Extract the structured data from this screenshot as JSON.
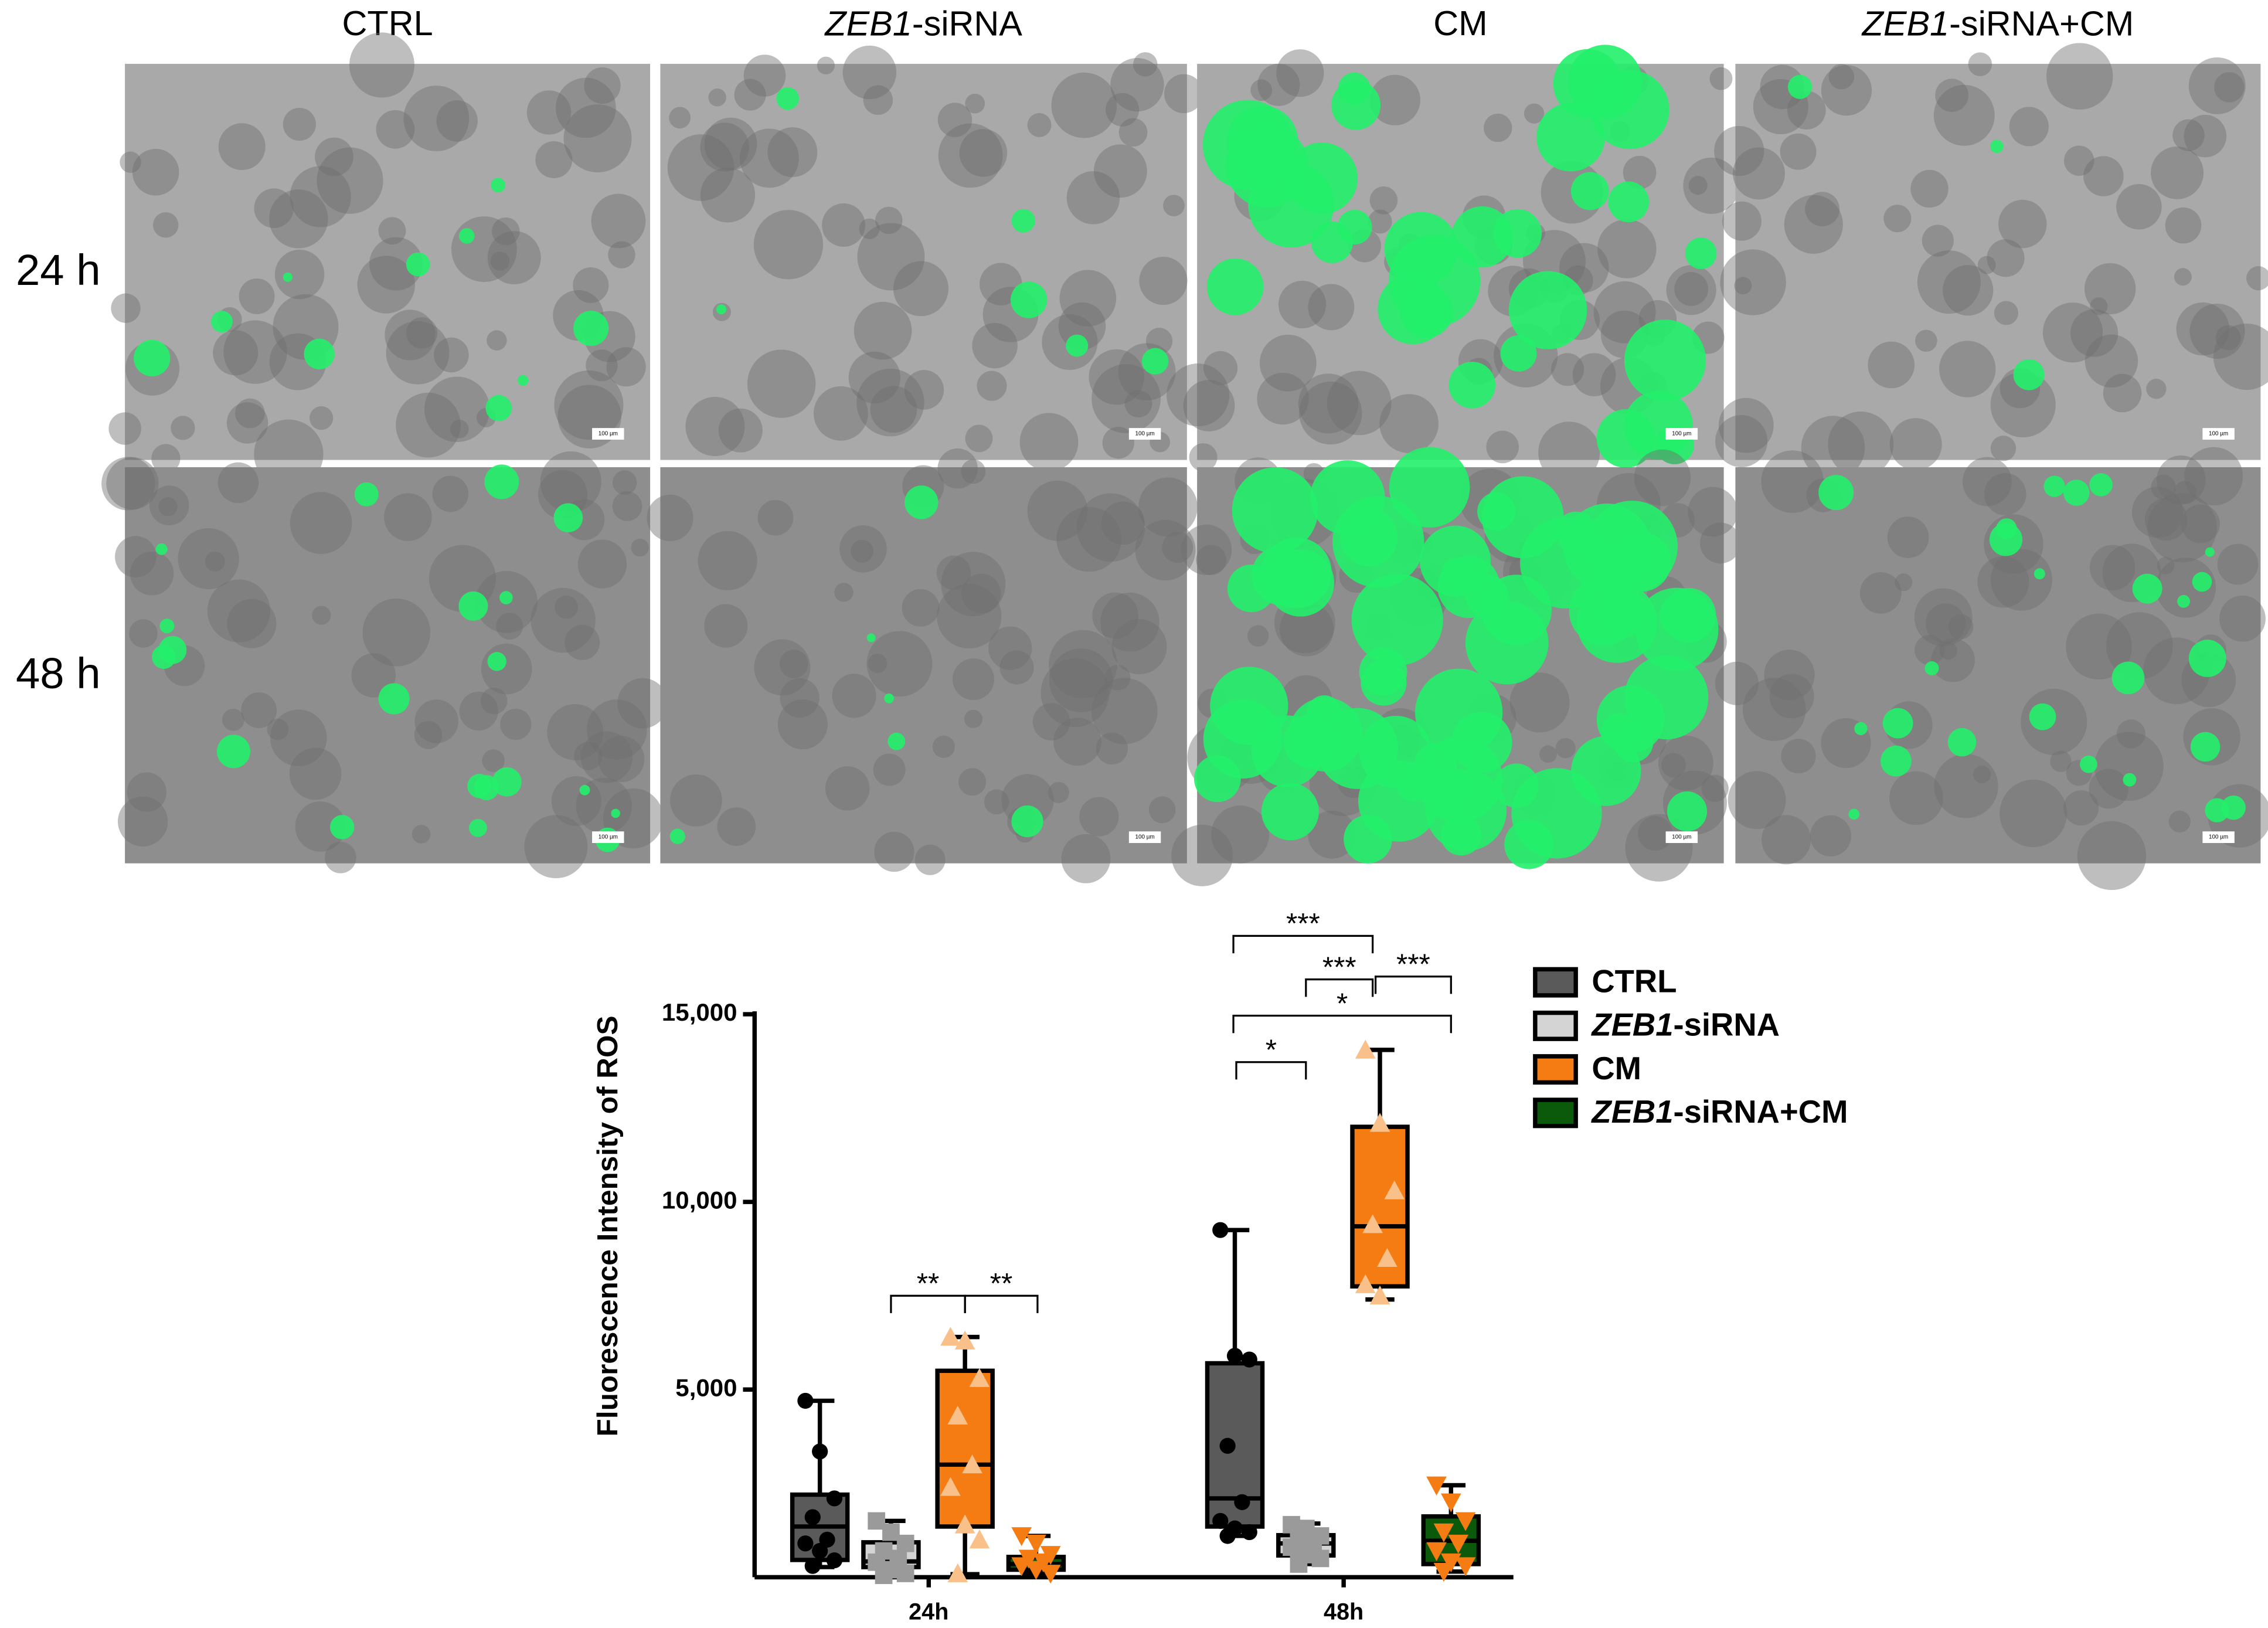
{
  "figure": {
    "column_titles": [
      "CTRL",
      "ZEB1-siRNA",
      "CM",
      "ZEB1-siRNA+CM"
    ],
    "row_labels": [
      "24 h",
      "48 h"
    ],
    "scale_bar_label": "100 µm"
  },
  "chart_data": {
    "type": "box",
    "ylabel": "Fluorescence Intensity of ROS",
    "categories": [
      "24h",
      "48h"
    ],
    "ylim": [
      0,
      15000
    ],
    "yticks": [
      {
        "value": 5000,
        "label": "5,000"
      },
      {
        "value": 10000,
        "label": "10,000"
      },
      {
        "value": 15000,
        "label": "15,000"
      }
    ],
    "legend": "upper right",
    "series": [
      {
        "name": "CTRL",
        "color": "#5a5a5a",
        "point_color": "#000000",
        "marker": "circle",
        "boxes": [
          {
            "min": 270,
            "q1": 460,
            "median": 1350,
            "q3": 2200,
            "max": 4700,
            "points": [
              4700,
              3350,
              2100,
              1600,
              1000,
              900,
              700,
              450,
              300
            ]
          },
          {
            "min": 1100,
            "q1": 1350,
            "median": 2100,
            "q3": 5700,
            "max": 9250,
            "points": [
              9250,
              5900,
              5800,
              3500,
              2000,
              1500,
              1300,
              1200,
              1100
            ]
          }
        ]
      },
      {
        "name": "ZEB1-siRNA",
        "color": "#d4d4d4",
        "point_color": "#9a9a9a",
        "marker": "square",
        "boxes": [
          {
            "min": 50,
            "q1": 270,
            "median": 420,
            "q3": 930,
            "max": 1500,
            "points": [
              1500,
              1200,
              900,
              700,
              500,
              400,
              200,
              100,
              50
            ]
          },
          {
            "min": 350,
            "q1": 580,
            "median": 900,
            "q3": 1120,
            "max": 1430,
            "points": [
              1400,
              1300,
              1100,
              1000,
              900,
              800,
              600,
              500,
              350
            ]
          }
        ]
      },
      {
        "name": "CM",
        "color": "#f47c12",
        "point_color": "#f9c08a",
        "marker": "triangle",
        "boxes": [
          {
            "min": 80,
            "q1": 1350,
            "median": 3000,
            "q3": 5500,
            "max": 6400,
            "points": [
              6400,
              6300,
              5300,
              4300,
              3000,
              2400,
              1400,
              1000,
              100
            ]
          },
          {
            "min": 7400,
            "q1": 7750,
            "median": 9350,
            "q3": 12000,
            "max": 14050,
            "points": [
              14050,
              12100,
              10300,
              9400,
              8500,
              7800,
              7500
            ]
          }
        ]
      },
      {
        "name": "ZEB1-siRNA+CM",
        "color": "#0b5a0b",
        "point_color": "#f47c12",
        "marker": "triangle-down",
        "boxes": [
          {
            "min": 100,
            "q1": 200,
            "median": 350,
            "q3": 540,
            "max": 1100,
            "points": [
              1100,
              900,
              600,
              500,
              400,
              300,
              200,
              100
            ]
          },
          {
            "min": 150,
            "q1": 350,
            "median": 970,
            "q3": 1620,
            "max": 2450,
            "points": [
              2450,
              2000,
              1500,
              1200,
              900,
              700,
              400,
              300,
              150
            ]
          }
        ]
      }
    ],
    "annotations": [
      "**",
      "**",
      "***",
      "***",
      "***",
      "*",
      "*"
    ]
  }
}
